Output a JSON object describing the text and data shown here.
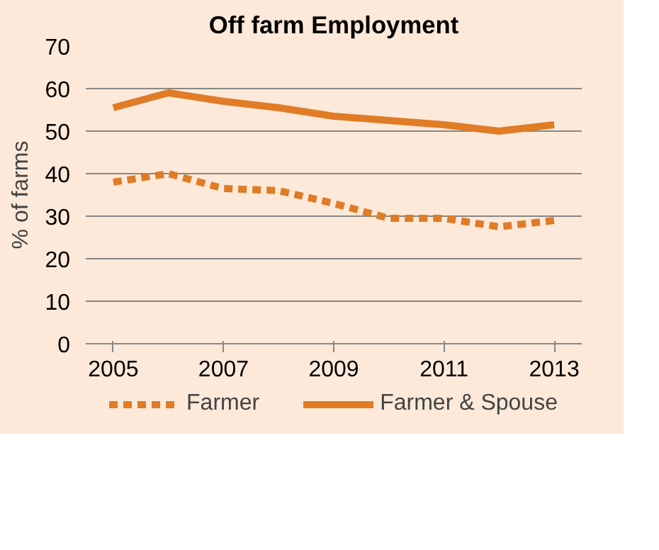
{
  "chart_data": {
    "type": "line",
    "title": "Off farm Employment",
    "ylabel": "% of farms",
    "categories": [
      "2005",
      null,
      "2007",
      null,
      "2009",
      null,
      "2011",
      null,
      "2013"
    ],
    "series": [
      {
        "name": "Farmer",
        "color": "#e07b26",
        "line_style": "dashed",
        "values": [
          38,
          40,
          36.5,
          36,
          33,
          29.5,
          29.5,
          27.5,
          29
        ]
      },
      {
        "name": "Farmer & Spouse",
        "color": "#e07b26",
        "line_style": "solid",
        "values": [
          55.5,
          59,
          57,
          55.5,
          53.5,
          52.5,
          51.5,
          50,
          51.5
        ]
      }
    ],
    "ylim": [
      0,
      70
    ],
    "yticks": [
      0,
      10,
      20,
      30,
      40,
      50,
      60,
      70
    ],
    "grid": "y",
    "legend": "bottom"
  }
}
